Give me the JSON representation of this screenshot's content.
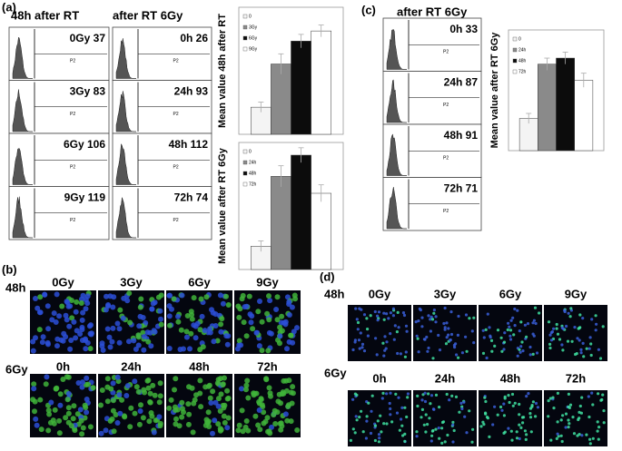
{
  "panel_labels": [
    "(a)",
    "(b)",
    "(c)",
    "(d)"
  ],
  "flow_a1": {
    "title": "48h after RT",
    "plots": [
      {
        "label": "0Gy 37",
        "gate": "P2"
      },
      {
        "label": "3Gy 83",
        "gate": "P2"
      },
      {
        "label": "6Gy 106",
        "gate": "P2"
      },
      {
        "label": "9Gy 119",
        "gate": "P2"
      }
    ]
  },
  "flow_a2": {
    "title": "after RT 6Gy",
    "plots": [
      {
        "label": "0h  26",
        "gate": "P2"
      },
      {
        "label": "24h  93",
        "gate": "P2"
      },
      {
        "label": "48h  112",
        "gate": "P2"
      },
      {
        "label": "72h  74",
        "gate": "P2"
      }
    ]
  },
  "flow_c": {
    "title": "after RT 6Gy",
    "plots": [
      {
        "label": "0h  33",
        "gate": "P2"
      },
      {
        "label": "24h  87",
        "gate": "P2"
      },
      {
        "label": "48h  91",
        "gate": "P2"
      },
      {
        "label": "72h  71",
        "gate": "P2"
      }
    ]
  },
  "chart_data": [
    {
      "type": "bar",
      "y_label": "Mean value 48h after RT",
      "ylim": [
        0,
        150
      ],
      "series": [
        {
          "name": "0",
          "color": "#f4f4f4",
          "values": [
            32
          ],
          "errors": [
            6
          ]
        },
        {
          "name": "3Gy",
          "color": "#8a8a8a",
          "values": [
            83
          ],
          "errors": [
            12
          ]
        },
        {
          "name": "6Gy",
          "color": "#0c0c0c",
          "values": [
            110
          ],
          "errors": [
            8
          ]
        },
        {
          "name": "9Gy",
          "color": "#ffffff",
          "values": [
            122
          ],
          "errors": [
            7
          ]
        }
      ]
    },
    {
      "type": "bar",
      "y_label": "Mean value after RT 6Gy",
      "ylim": [
        0,
        120
      ],
      "series": [
        {
          "name": "0",
          "color": "#f4f4f4",
          "values": [
            22
          ],
          "errors": [
            5
          ]
        },
        {
          "name": "24h",
          "color": "#8a8a8a",
          "values": [
            88
          ],
          "errors": [
            10
          ]
        },
        {
          "name": "48h",
          "color": "#0c0c0c",
          "values": [
            108
          ],
          "errors": [
            7
          ]
        },
        {
          "name": "72h",
          "color": "#ffffff",
          "values": [
            72
          ],
          "errors": [
            8
          ]
        }
      ]
    },
    {
      "type": "bar",
      "y_label": "Mean value after RT 6Gy",
      "ylim": [
        0,
        120
      ],
      "series": [
        {
          "name": "0",
          "color": "#f4f4f4",
          "values": [
            32
          ],
          "errors": [
            5
          ]
        },
        {
          "name": "24h",
          "color": "#8a8a8a",
          "values": [
            86
          ],
          "errors": [
            6
          ]
        },
        {
          "name": "48h",
          "color": "#0c0c0c",
          "values": [
            92
          ],
          "errors": [
            6
          ]
        },
        {
          "name": "72h",
          "color": "#ffffff",
          "values": [
            70
          ],
          "errors": [
            7
          ]
        }
      ]
    }
  ],
  "micro_b": {
    "rows": [
      {
        "label": "48h",
        "columns": [
          "0Gy",
          "3Gy",
          "6Gy",
          "9Gy"
        ]
      },
      {
        "label": "6Gy",
        "columns": [
          "0h",
          "24h",
          "48h",
          "72h"
        ]
      }
    ]
  },
  "micro_d": {
    "rows": [
      {
        "label": "48h",
        "columns": [
          "0Gy",
          "3Gy",
          "6Gy",
          "9Gy"
        ]
      },
      {
        "label": "6Gy",
        "columns": [
          "0h",
          "24h",
          "48h",
          "72h"
        ]
      }
    ]
  }
}
